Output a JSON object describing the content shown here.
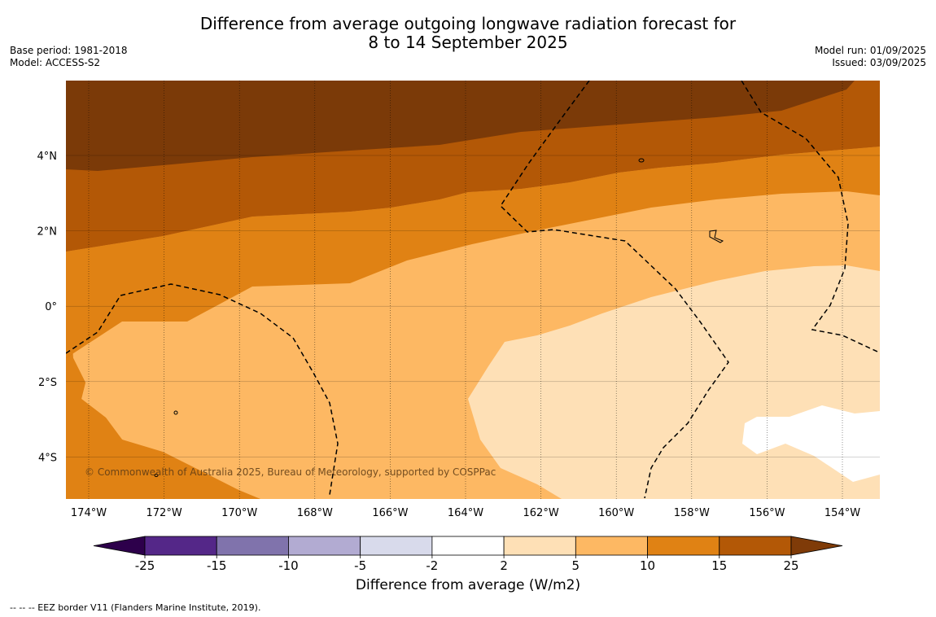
{
  "header": {
    "title_line1": "Difference from average outgoing longwave radiation forecast for",
    "title_line2": "8 to 14 September 2025",
    "base_period": "Base period: 1981-2018",
    "model": "Model: ACCESS-S2",
    "model_run": "Model run: 01/09/2025",
    "issued": "Issued: 03/09/2025"
  },
  "map": {
    "lon_labels": [
      "174°W",
      "172°W",
      "170°W",
      "168°W",
      "166°W",
      "164°W",
      "162°W",
      "160°W",
      "158°W",
      "156°W",
      "154°W"
    ],
    "lat_labels": [
      "4°N",
      "2°N",
      "0°",
      "2°S",
      "4°S"
    ],
    "copyright": "© Commonwealth of Australia 2025, Bureau of Meteorology, supported by COSPPac",
    "colors": {
      "above_25": "#7b3a08",
      "15_25": "#b35806",
      "10_15": "#e08214",
      "5_10": "#fdb863",
      "2_5": "#fee0b6",
      "neutral": "#ffffff"
    }
  },
  "colorbar": {
    "title": "Difference from average (W/m2)",
    "tick_labels": [
      "-25",
      "-15",
      "-10",
      "-5",
      "-2",
      "2",
      "5",
      "10",
      "15",
      "25"
    ],
    "colors": [
      "#542788",
      "#8073ac",
      "#b2abd2",
      "#d8daeb",
      "#ffffff",
      "#fee0b6",
      "#fdb863",
      "#e08214",
      "#b35806"
    ],
    "extend_low_color": "#2d004b",
    "extend_high_color": "#7f3b08"
  },
  "footer": {
    "legend_text": "--  --  -- EEZ border V11 (Flanders Marine Institute, 2019)."
  }
}
